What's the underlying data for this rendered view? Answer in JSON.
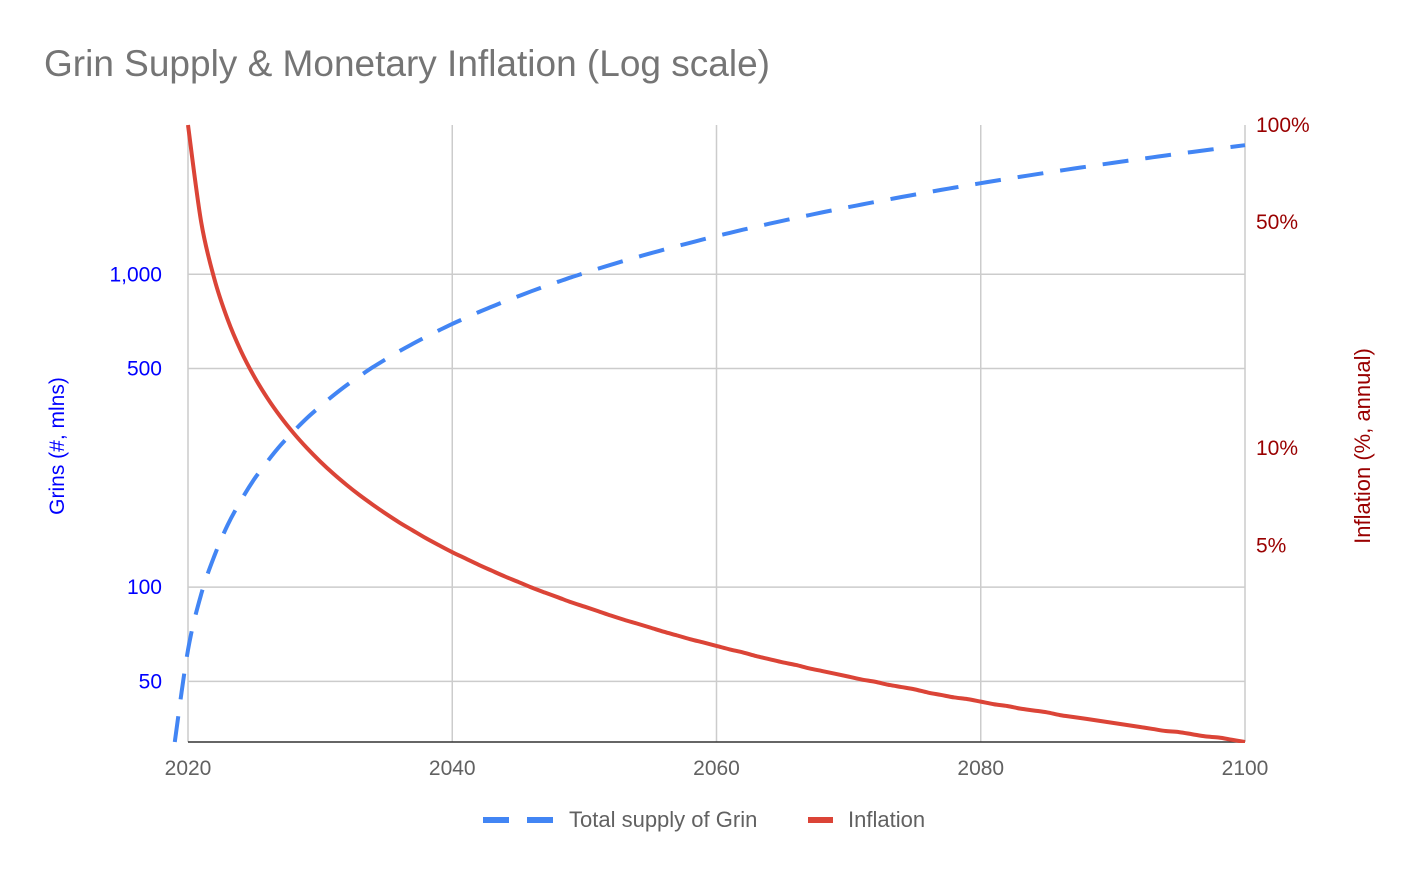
{
  "chart_data": {
    "type": "line",
    "title": "Grin Supply & Monetary Inflation (Log scale)",
    "xlabel": "",
    "ylabel_left": "Grins (#, mlns)",
    "ylabel_right": "Inflation (%, annual)",
    "xlim": [
      2020,
      2100
    ],
    "ylim_left": [
      32,
      3000
    ],
    "ylim_right": [
      1.23,
      100
    ],
    "yscale": "log",
    "grid": true,
    "legend_position": "bottom",
    "x_ticks": [
      "2020",
      "2040",
      "2060",
      "2080",
      "2100"
    ],
    "x_tick_values": [
      2020,
      2040,
      2060,
      2080,
      2100
    ],
    "left_ticks": [
      "1,000",
      "500",
      "100",
      "50"
    ],
    "left_tick_values": [
      1000,
      500,
      100,
      50
    ],
    "right_ticks": [
      "100%",
      "50%",
      "10%",
      "5%"
    ],
    "right_tick_values": [
      100,
      50,
      10,
      5
    ],
    "series": [
      {
        "name": "Total supply of Grin",
        "axis": "left",
        "color": "#4285f4",
        "style": "dashed",
        "x_start": 2019,
        "values": [
          32,
          63,
          95,
          126,
          158,
          189,
          221,
          252,
          284,
          315,
          347,
          378,
          410,
          442,
          473,
          505,
          536,
          568,
          599,
          631,
          662,
          694,
          725,
          757,
          788,
          820,
          851,
          883,
          915,
          946,
          978,
          1009,
          1041,
          1072,
          1104,
          1135,
          1167,
          1198,
          1230,
          1261,
          1293,
          1325,
          1356,
          1388,
          1419,
          1451,
          1482,
          1514,
          1545,
          1577,
          1608,
          1640,
          1671,
          1703,
          1734,
          1766,
          1797,
          1829,
          1861,
          1892,
          1924,
          1955,
          1987,
          2018,
          2050,
          2081,
          2113,
          2144,
          2176,
          2207,
          2239,
          2270,
          2302,
          2334,
          2365,
          2397,
          2428,
          2460,
          2491,
          2523,
          2554,
          2586
        ]
      },
      {
        "name": "Inflation",
        "axis": "right",
        "color": "#db4437",
        "style": "solid",
        "x_start": 2020,
        "values": [
          100,
          50,
          33.33,
          25,
          20,
          16.67,
          14.29,
          12.5,
          11.11,
          10,
          9.09,
          8.33,
          7.69,
          7.14,
          6.67,
          6.25,
          5.88,
          5.56,
          5.26,
          5,
          4.76,
          4.55,
          4.35,
          4.17,
          4,
          3.85,
          3.7,
          3.57,
          3.45,
          3.33,
          3.23,
          3.13,
          3.03,
          2.94,
          2.86,
          2.78,
          2.7,
          2.63,
          2.56,
          2.5,
          2.44,
          2.38,
          2.33,
          2.27,
          2.22,
          2.17,
          2.13,
          2.08,
          2.04,
          2,
          1.96,
          1.92,
          1.89,
          1.85,
          1.82,
          1.79,
          1.75,
          1.72,
          1.69,
          1.67,
          1.64,
          1.61,
          1.59,
          1.56,
          1.54,
          1.52,
          1.49,
          1.47,
          1.45,
          1.43,
          1.41,
          1.39,
          1.37,
          1.35,
          1.33,
          1.32,
          1.3,
          1.28,
          1.27,
          1.25,
          1.23
        ]
      }
    ],
    "colors": {
      "left_axis": "#0000ff",
      "right_axis": "#990000",
      "title": "#757575",
      "grid": "#cccccc"
    }
  }
}
